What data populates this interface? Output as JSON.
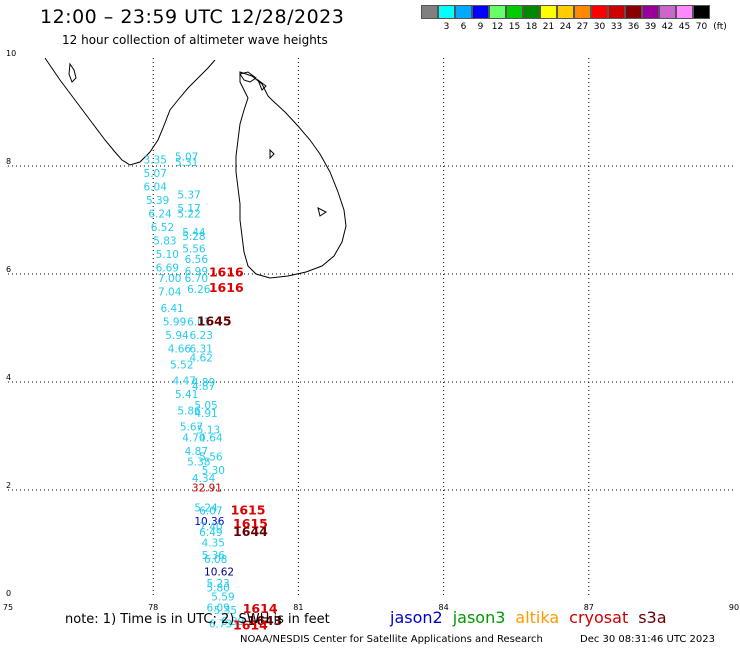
{
  "header": {
    "title": "12:00 – 23:59 UTC 12/28/2023",
    "subtitle": "12 hour collection of altimeter wave heights"
  },
  "legend": {
    "colors": [
      "#808080",
      "#00ffff",
      "#00aaff",
      "#0000ff",
      "#66ff66",
      "#00cc00",
      "#008800",
      "#ffff00",
      "#ffcc00",
      "#ff8800",
      "#ff0000",
      "#cc0000",
      "#880000",
      "#990099",
      "#cc66cc",
      "#ff88ff",
      "#000000"
    ],
    "labels": [
      "",
      "3",
      "6",
      "9",
      "12",
      "15",
      "18",
      "21",
      "24",
      "27",
      "30",
      "33",
      "36",
      "39",
      "42",
      "45",
      "70"
    ],
    "unit": "(ft)"
  },
  "axes": {
    "x_ticks": [
      "75",
      "78",
      "81",
      "84",
      "87",
      "90"
    ],
    "y_ticks": [
      "0",
      "2",
      "4",
      "6",
      "8",
      "10"
    ]
  },
  "observations": [
    {
      "v": "5.07",
      "lon": 78.45,
      "lat": 8.1,
      "c": "#22ccee"
    },
    {
      "v": "3.35",
      "lon": 77.8,
      "lat": 8.05,
      "c": "#22ccee"
    },
    {
      "v": "5.31",
      "lon": 78.45,
      "lat": 8.0,
      "c": "#22ccee"
    },
    {
      "v": "5.07",
      "lon": 77.8,
      "lat": 7.8,
      "c": "#22ccee"
    },
    {
      "v": "6.04",
      "lon": 77.8,
      "lat": 7.55,
      "c": "#22ccee"
    },
    {
      "v": "5.37",
      "lon": 78.5,
      "lat": 7.4,
      "c": "#22ccee"
    },
    {
      "v": "5.39",
      "lon": 77.85,
      "lat": 7.3,
      "c": "#22ccee"
    },
    {
      "v": "5.17",
      "lon": 78.5,
      "lat": 7.15,
      "c": "#22ccee"
    },
    {
      "v": "6.24",
      "lon": 77.9,
      "lat": 7.05,
      "c": "#22ccee"
    },
    {
      "v": "5.22",
      "lon": 78.5,
      "lat": 7.05,
      "c": "#22ccee"
    },
    {
      "v": "6.52",
      "lon": 77.95,
      "lat": 6.8,
      "c": "#22ccee"
    },
    {
      "v": "5.44",
      "lon": 78.6,
      "lat": 6.7,
      "c": "#22ccee"
    },
    {
      "v": "5.28",
      "lon": 78.6,
      "lat": 6.63,
      "c": "#22ccee"
    },
    {
      "v": "5.83",
      "lon": 78.0,
      "lat": 6.55,
      "c": "#22ccee"
    },
    {
      "v": "5.56",
      "lon": 78.6,
      "lat": 6.4,
      "c": "#22ccee"
    },
    {
      "v": "5.10",
      "lon": 78.05,
      "lat": 6.3,
      "c": "#22ccee"
    },
    {
      "v": "6.56",
      "lon": 78.65,
      "lat": 6.2,
      "c": "#22ccee"
    },
    {
      "v": "6.69",
      "lon": 78.05,
      "lat": 6.05,
      "c": "#22ccee"
    },
    {
      "v": "6.99",
      "lon": 78.65,
      "lat": 5.98,
      "c": "#22ccee"
    },
    {
      "v": "7.00",
      "lon": 78.1,
      "lat": 5.85,
      "c": "#22ccee"
    },
    {
      "v": "6.70",
      "lon": 78.65,
      "lat": 5.85,
      "c": "#22ccee"
    },
    {
      "v": "7.04",
      "lon": 78.1,
      "lat": 5.6,
      "c": "#22ccee"
    },
    {
      "v": "6.26",
      "lon": 78.7,
      "lat": 5.65,
      "c": "#22ccee"
    },
    {
      "v": "6.41",
      "lon": 78.15,
      "lat": 5.3,
      "c": "#22ccee"
    },
    {
      "v": "5.99",
      "lon": 78.2,
      "lat": 5.05,
      "c": "#22ccee"
    },
    {
      "v": "6.01",
      "lon": 78.7,
      "lat": 5.05,
      "c": "#22ccee"
    },
    {
      "v": "5.94",
      "lon": 78.25,
      "lat": 4.8,
      "c": "#22ccee"
    },
    {
      "v": "6.23",
      "lon": 78.75,
      "lat": 4.8,
      "c": "#22ccee"
    },
    {
      "v": "4.66",
      "lon": 78.3,
      "lat": 4.55,
      "c": "#22ccee"
    },
    {
      "v": "6.31",
      "lon": 78.75,
      "lat": 4.55,
      "c": "#22ccee"
    },
    {
      "v": "4.62",
      "lon": 78.75,
      "lat": 4.38,
      "c": "#22ccee"
    },
    {
      "v": "5.52",
      "lon": 78.35,
      "lat": 4.25,
      "c": "#22ccee"
    },
    {
      "v": "4.47",
      "lon": 78.4,
      "lat": 3.95,
      "c": "#22ccee"
    },
    {
      "v": "4.89",
      "lon": 78.8,
      "lat": 3.93,
      "c": "#22ccee"
    },
    {
      "v": "4.87",
      "lon": 78.8,
      "lat": 3.85,
      "c": "#22ccee"
    },
    {
      "v": "5.41",
      "lon": 78.45,
      "lat": 3.7,
      "c": "#22ccee"
    },
    {
      "v": "5.05",
      "lon": 78.85,
      "lat": 3.5,
      "c": "#22ccee"
    },
    {
      "v": "5.86",
      "lon": 78.5,
      "lat": 3.4,
      "c": "#22ccee"
    },
    {
      "v": "4.91",
      "lon": 78.85,
      "lat": 3.35,
      "c": "#22ccee"
    },
    {
      "v": "5.67",
      "lon": 78.55,
      "lat": 3.1,
      "c": "#22ccee"
    },
    {
      "v": "5.13",
      "lon": 78.9,
      "lat": 3.05,
      "c": "#22ccee"
    },
    {
      "v": "4.70",
      "lon": 78.6,
      "lat": 2.9,
      "c": "#22ccee"
    },
    {
      "v": "4.64",
      "lon": 78.95,
      "lat": 2.9,
      "c": "#22ccee"
    },
    {
      "v": "4.87",
      "lon": 78.65,
      "lat": 2.65,
      "c": "#22ccee"
    },
    {
      "v": "5.56",
      "lon": 78.95,
      "lat": 2.55,
      "c": "#22ccee"
    },
    {
      "v": "5.38",
      "lon": 78.7,
      "lat": 2.45,
      "c": "#22ccee"
    },
    {
      "v": "5.30",
      "lon": 79.0,
      "lat": 2.3,
      "c": "#22ccee"
    },
    {
      "v": "4.34",
      "lon": 78.8,
      "lat": 2.15,
      "c": "#22ccee"
    },
    {
      "v": "32.91",
      "lon": 78.8,
      "lat": 1.97,
      "c": "#cc0000"
    },
    {
      "v": "5.24",
      "lon": 78.85,
      "lat": 1.6,
      "c": "#22ccee"
    },
    {
      "v": "6.07",
      "lon": 78.95,
      "lat": 1.55,
      "c": "#22ccee"
    },
    {
      "v": "10.36",
      "lon": 78.85,
      "lat": 1.35,
      "c": "#0000cc"
    },
    {
      "v": "7.40",
      "lon": 78.95,
      "lat": 1.25,
      "c": "#22ccee"
    },
    {
      "v": "6.49",
      "lon": 78.95,
      "lat": 1.15,
      "c": "#22ccee"
    },
    {
      "v": "4.35",
      "lon": 79.0,
      "lat": 0.95,
      "c": "#22ccee"
    },
    {
      "v": "5.36",
      "lon": 79.0,
      "lat": 0.72,
      "c": "#22ccee"
    },
    {
      "v": "6.08",
      "lon": 79.05,
      "lat": 0.65,
      "c": "#22ccee"
    },
    {
      "v": "10.62",
      "lon": 79.05,
      "lat": 0.42,
      "c": "#000080"
    },
    {
      "v": "5.23",
      "lon": 79.1,
      "lat": 0.2,
      "c": "#22ccee"
    },
    {
      "v": "5.80",
      "lon": 79.1,
      "lat": 0.12,
      "c": "#22ccee"
    },
    {
      "v": "5.59",
      "lon": 79.2,
      "lat": -0.05,
      "c": "#22ccee"
    },
    {
      "v": "6.09",
      "lon": 79.1,
      "lat": -0.25,
      "c": "#22ccee"
    },
    {
      "v": "5.35",
      "lon": 79.25,
      "lat": -0.3,
      "c": "#22ccee"
    },
    {
      "v": "6.73",
      "lon": 79.15,
      "lat": -0.55,
      "c": "#22ccee"
    },
    {
      "v": "6.39",
      "lon": 79.4,
      "lat": -0.5,
      "c": "#22ccee"
    }
  ],
  "pass_times": [
    {
      "t": "1616",
      "lon": 79.15,
      "lat": 5.95,
      "c": "#dd0000"
    },
    {
      "t": "1616",
      "lon": 79.15,
      "lat": 5.67,
      "c": "#dd0000"
    },
    {
      "t": "1645",
      "lon": 78.9,
      "lat": 5.05,
      "c": "#660000"
    },
    {
      "t": "1615",
      "lon": 79.6,
      "lat": 1.55,
      "c": "#dd0000"
    },
    {
      "t": "1615",
      "lon": 79.65,
      "lat": 1.3,
      "c": "#dd0000"
    },
    {
      "t": "1644",
      "lon": 79.65,
      "lat": 1.15,
      "c": "#660000"
    },
    {
      "t": "1614",
      "lon": 79.85,
      "lat": -0.28,
      "c": "#dd0000"
    },
    {
      "t": "1643",
      "lon": 79.95,
      "lat": -0.5,
      "c": "#660000"
    },
    {
      "t": "1614",
      "lon": 79.65,
      "lat": -0.58,
      "c": "#dd0000"
    }
  ],
  "footer": {
    "note": "note: 1) Time is in UTC; 2) SWH is in feet",
    "satellites": [
      {
        "name": "jason2",
        "color": "#0000cc"
      },
      {
        "name": "jason3",
        "color": "#009900"
      },
      {
        "name": "altika",
        "color": "#ff9900"
      },
      {
        "name": "cryosat",
        "color": "#cc0000"
      },
      {
        "name": "s3a",
        "color": "#660000"
      }
    ],
    "credit": "NOAA/NESDIS Center for Satellite Applications and Research",
    "timestamp": "Dec 30 08:31:46 UTC 2023"
  }
}
